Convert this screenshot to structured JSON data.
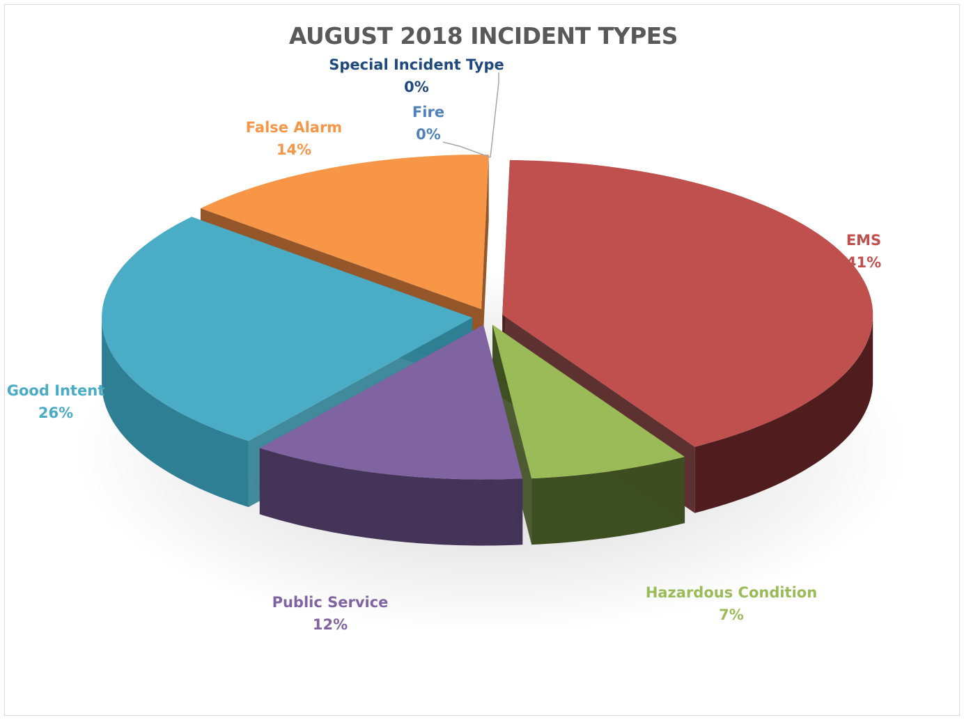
{
  "chart_data": {
    "type": "pie",
    "title": "AUGUST 2018 INCIDENT TYPES",
    "slices": [
      {
        "name": "EMS",
        "value": 41,
        "label": "41%",
        "color": "#c0504d",
        "side": "#4f1d1d",
        "label_color": "#c0504d"
      },
      {
        "name": "Hazardous Condition",
        "value": 7,
        "label": "7%",
        "color": "#9bbb59",
        "side": "#3d4e20",
        "label_color": "#9bbb59"
      },
      {
        "name": "Public Service",
        "value": 12,
        "label": "12%",
        "color": "#8064a2",
        "side": "#443458",
        "label_color": "#8064a2"
      },
      {
        "name": "Good Intent",
        "value": 26,
        "label": "26%",
        "color": "#4bacc6",
        "side": "#2f7f94",
        "label_color": "#4bacc6"
      },
      {
        "name": "False Alarm",
        "value": 14,
        "label": "14%",
        "color": "#f79646",
        "side": "#8a4512",
        "label_color": "#f79646"
      },
      {
        "name": "Fire",
        "value": 0,
        "label": "0%",
        "color": "#4f81bd",
        "side": "#2c4d74",
        "label_color": "#4f81bd"
      },
      {
        "name": "Special Incident Type",
        "value": 0,
        "label": "0%",
        "color": "#1f497d",
        "side": "#1f497d",
        "label_color": "#1f497d"
      }
    ],
    "legend": "none",
    "style": "3d-exploded"
  }
}
